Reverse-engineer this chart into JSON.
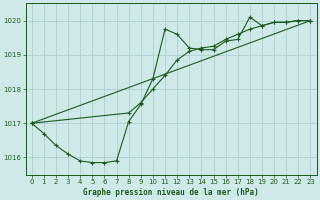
{
  "title": "Graphe pression niveau de la mer (hPa)",
  "bg_color": "#cfe9e9",
  "grid_color": "#a8cccc",
  "line_color": "#1a5c1a",
  "spine_color": "#1a5c1a",
  "x_values": [
    0,
    1,
    2,
    3,
    4,
    5,
    6,
    7,
    8,
    9,
    10,
    11,
    12,
    13,
    14,
    15,
    16,
    17,
    18,
    19,
    20,
    21,
    22,
    23
  ],
  "line1": [
    1017.0,
    1016.7,
    1016.35,
    1016.1,
    1015.9,
    1015.85,
    1015.85,
    1015.9,
    1017.05,
    1017.55,
    1018.3,
    1019.75,
    1019.6,
    1019.2,
    1019.15,
    1019.15,
    1019.4,
    1019.45,
    1020.1,
    1019.85,
    1019.95,
    1019.95,
    1020.0,
    1020.0
  ],
  "line2_x": [
    0,
    23
  ],
  "line2_y": [
    1017.0,
    1020.0
  ],
  "line3_x": [
    0,
    8,
    9,
    10,
    11,
    12,
    13,
    14,
    15,
    16,
    17,
    18,
    19,
    20,
    21,
    22,
    23
  ],
  "line3_y": [
    1017.0,
    1017.3,
    1017.6,
    1018.0,
    1018.4,
    1018.85,
    1019.1,
    1019.2,
    1019.25,
    1019.45,
    1019.6,
    1019.75,
    1019.85,
    1019.95,
    1019.95,
    1020.0,
    1020.0
  ],
  "ylim": [
    1015.5,
    1020.5
  ],
  "xlim": [
    -0.5,
    23.5
  ],
  "yticks": [
    1016,
    1017,
    1018,
    1019,
    1020
  ],
  "xticks": [
    0,
    1,
    2,
    3,
    4,
    5,
    6,
    7,
    8,
    9,
    10,
    11,
    12,
    13,
    14,
    15,
    16,
    17,
    18,
    19,
    20,
    21,
    22,
    23
  ]
}
